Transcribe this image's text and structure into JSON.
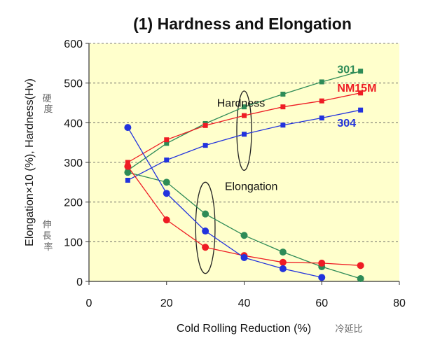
{
  "chart_data": {
    "type": "line",
    "title": "(1) Hardness and Elongation",
    "xlabel": "Cold Rolling Reduction (%)",
    "xlabel_jp": "冷延比",
    "ylabel": "Elongation×10 (%), Hardness(Hv)",
    "ylabel_jp_top": "硬度",
    "ylabel_jp_bottom": "伸長率",
    "xlim": [
      0,
      80
    ],
    "ylim": [
      0,
      600
    ],
    "xticks": [
      0,
      20,
      40,
      60,
      80
    ],
    "yticks": [
      0,
      100,
      200,
      300,
      400,
      500,
      600
    ],
    "grid": "horizontal dashed",
    "plot_background": "#ffffcc",
    "series": [
      {
        "name": "301",
        "group": "hardness",
        "color": "#2e8b57",
        "marker": "square",
        "x": [
          10,
          20,
          30,
          40,
          50,
          60,
          70
        ],
        "values": [
          280,
          348,
          398,
          440,
          472,
          503,
          530
        ]
      },
      {
        "name": "NM15M",
        "group": "hardness",
        "color": "#ee1c24",
        "marker": "square",
        "x": [
          10,
          20,
          30,
          40,
          50,
          60,
          70
        ],
        "values": [
          300,
          357,
          393,
          418,
          440,
          455,
          475
        ]
      },
      {
        "name": "304",
        "group": "hardness",
        "color": "#2233dd",
        "marker": "square",
        "x": [
          10,
          20,
          30,
          40,
          50,
          60,
          70
        ],
        "values": [
          255,
          306,
          343,
          371,
          394,
          412,
          432
        ]
      },
      {
        "name": "301",
        "group": "elongation",
        "color": "#2e8b57",
        "marker": "circle",
        "x": [
          10,
          20,
          30,
          40,
          50,
          60,
          70
        ],
        "values": [
          275,
          250,
          170,
          116,
          74,
          37,
          7
        ]
      },
      {
        "name": "NM15M",
        "group": "elongation",
        "color": "#ee1c24",
        "marker": "circle",
        "x": [
          10,
          20,
          30,
          40,
          50,
          60,
          70
        ],
        "values": [
          290,
          155,
          86,
          65,
          48,
          46,
          40
        ]
      },
      {
        "name": "304",
        "group": "elongation",
        "color": "#2233dd",
        "marker": "circle",
        "x": [
          10,
          20,
          30,
          40,
          50,
          60
        ],
        "values": [
          388,
          222,
          127,
          60,
          32,
          10
        ]
      }
    ],
    "annotations": [
      {
        "text": "Hardness",
        "x": 33,
        "y": 440
      },
      {
        "text": "Elongation",
        "x": 35,
        "y": 230
      },
      {
        "text": "301",
        "x": 64,
        "y": 525,
        "color": "#2e8b57"
      },
      {
        "text": "NM15M",
        "x": 64,
        "y": 478,
        "color": "#ee1c24"
      },
      {
        "text": "304",
        "x": 64,
        "y": 390,
        "color": "#2233dd"
      }
    ],
    "ellipses": [
      {
        "cx": 40,
        "cy": 380,
        "rx": 1.9,
        "ry": 100
      },
      {
        "cx": 30,
        "cy": 135,
        "rx": 2.5,
        "ry": 115
      }
    ]
  }
}
